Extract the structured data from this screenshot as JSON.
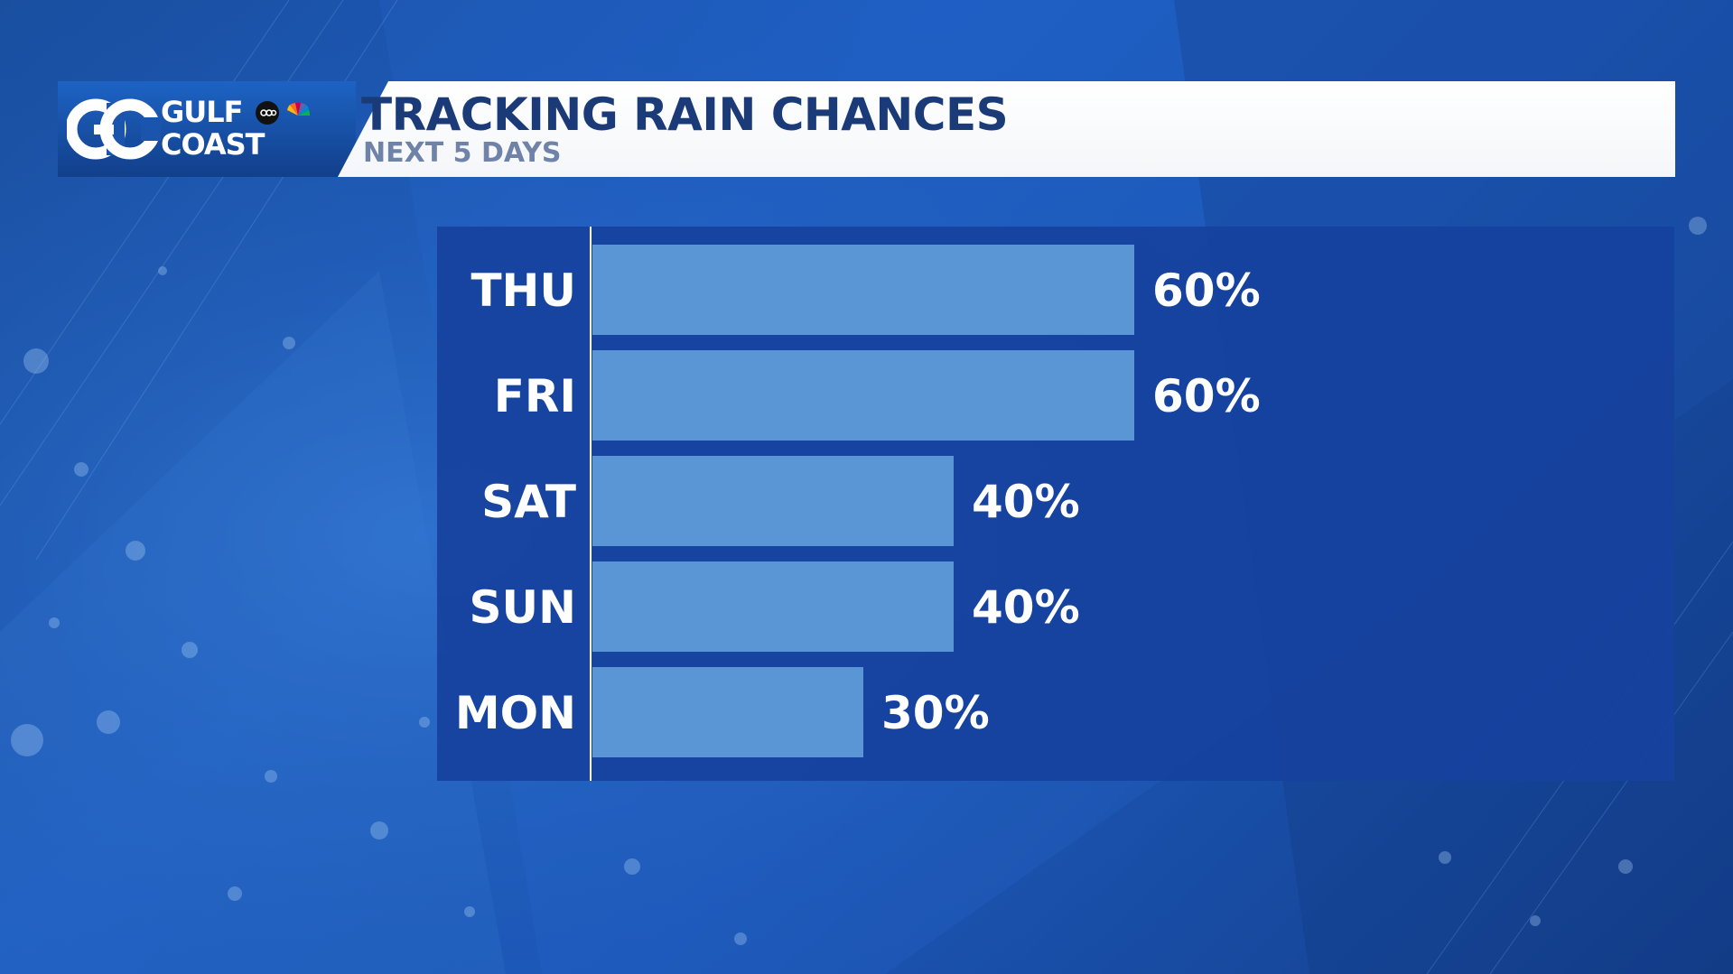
{
  "header": {
    "brand_line1": "GULF",
    "brand_line2": "COAST",
    "brand_mark": "GC",
    "title": "TRACKING RAIN CHANCES",
    "subtitle": "NEXT 5 DAYS"
  },
  "icons": {
    "brand": "gc-logo-icon",
    "network1": "abc-logo-icon",
    "network2": "nbc-peacock-icon"
  },
  "colors": {
    "bar": "#5a95d6",
    "panel": "#17429e",
    "title": "#1a3a78",
    "subtitle": "#6f82a8"
  },
  "chart_data": {
    "type": "bar",
    "orientation": "horizontal",
    "title": "TRACKING RAIN CHANCES",
    "subtitle": "NEXT 5 DAYS",
    "categories": [
      "THU",
      "FRI",
      "SAT",
      "SUN",
      "MON"
    ],
    "values": [
      60,
      60,
      40,
      40,
      30
    ],
    "value_labels": [
      "60%",
      "60%",
      "40%",
      "40%",
      "30%"
    ],
    "xlim": [
      0,
      100
    ],
    "grid": false,
    "legend": "none"
  }
}
